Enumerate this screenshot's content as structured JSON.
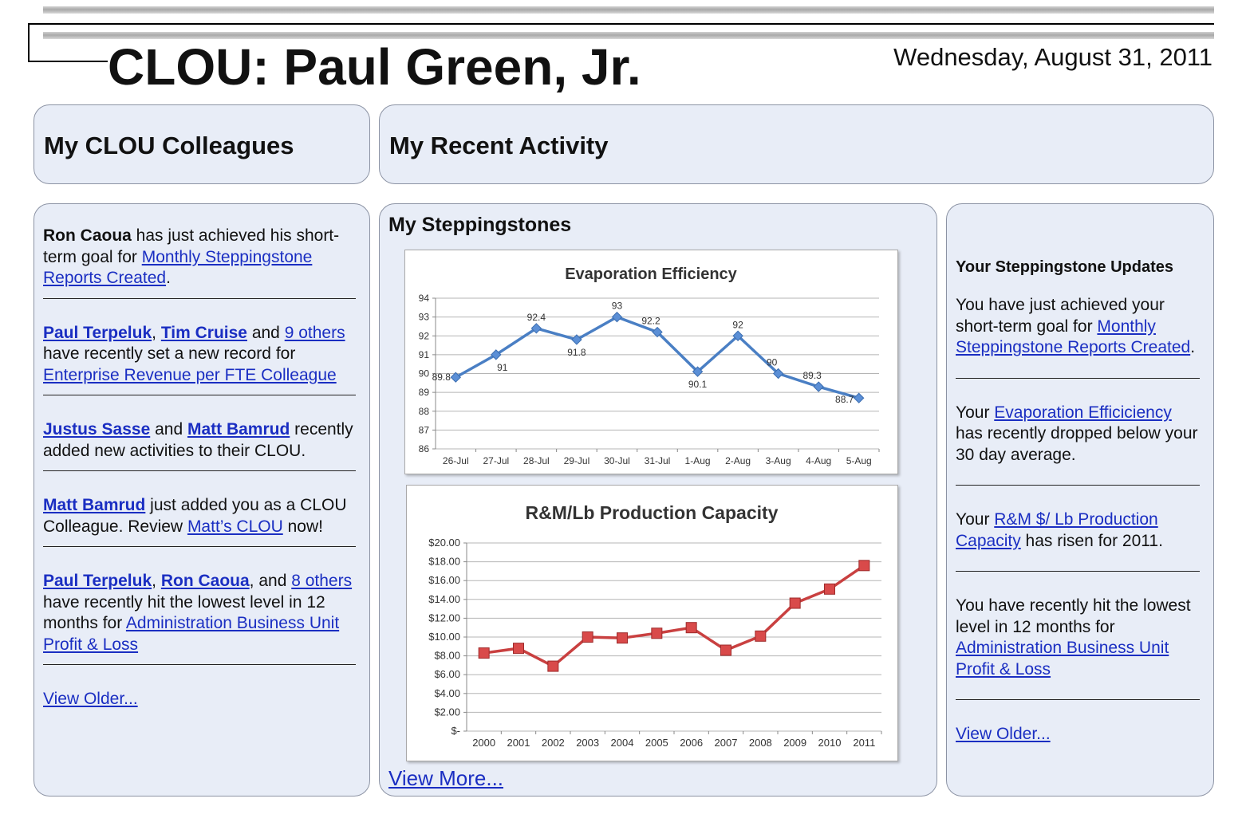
{
  "header": {
    "title": "CLOU: Paul Green, Jr.",
    "date": "Wednesday, August 31, 2011"
  },
  "colleagues_header": "My CLOU Colleagues",
  "activity_header": "My Recent Activity",
  "colleagues": {
    "item1": {
      "name": "Ron Caoua",
      "text1": " has just achieved his short-term goal for ",
      "link": "Monthly Steppingstone Reports Created",
      "text2": "."
    },
    "item2": {
      "name1": "Paul Terpeluk",
      "sep1": ", ",
      "name2": "Tim Cruise",
      "sep2": " and ",
      "others": "9 others",
      "text1": " have recently set a new record for ",
      "link": "Enterprise Revenue per FTE Colleague"
    },
    "item3": {
      "name1": "Justus Sasse",
      "sep1": " and ",
      "name2": "Matt Bamrud",
      "text1": " recently added new activities to their CLOU."
    },
    "item4": {
      "name": "Matt Bamrud",
      "text1": " just added you as a CLOU Colleague.  Review ",
      "link": "Matt’s CLOU",
      "text2": " now!"
    },
    "item5": {
      "name1": "Paul Terpeluk",
      "sep1": ", ",
      "name2": "Ron Caoua",
      "sep2": ", and ",
      "others": "8 others ",
      "text1": "have recently hit the lowest level in 12 months for ",
      "link": "Administration Business Unit Profit & Loss"
    },
    "view_older": "View Older..."
  },
  "steppingstones": {
    "title": "My Steppingstones",
    "view_more": "View More..."
  },
  "updates": {
    "title": "Your Steppingstone Updates",
    "u1": {
      "text1": "You have  just achieved your short-term goal for ",
      "link": "Monthly Steppingstone Reports Created",
      "text2": "."
    },
    "u2": {
      "text1": "Your ",
      "link": "Evaporation Efficiciency",
      "text2": " has recently dropped below your 30 day average."
    },
    "u3": {
      "text1": "Your ",
      "link": "R&M $/ Lb Production Capacity",
      "text2": " has risen for 2011."
    },
    "u4": {
      "text1": "You have recently hit the lowest level in 12 months for ",
      "link": "Administration Business Unit Profit & Loss"
    },
    "view_older": "View Older..."
  },
  "chart_data": [
    {
      "type": "line",
      "title": "Evaporation Efficiency",
      "categories": [
        "26-Jul",
        "27-Jul",
        "28-Jul",
        "29-Jul",
        "30-Jul",
        "31-Jul",
        "1-Aug",
        "2-Aug",
        "3-Aug",
        "4-Aug",
        "5-Aug"
      ],
      "values": [
        89.8,
        91,
        92.4,
        91.8,
        93,
        92.2,
        90.1,
        92,
        90,
        89.3,
        88.7
      ],
      "data_labels": [
        "89.8",
        "91",
        "92.4",
        "91.8",
        "93",
        "92.2",
        "90.1",
        "92",
        "90",
        "89.3",
        "88.7"
      ],
      "ylim": [
        86,
        94
      ],
      "yticks": [
        86,
        87,
        88,
        89,
        90,
        91,
        92,
        93,
        94
      ],
      "ytick_labels": [
        "86",
        "87",
        "88",
        "89",
        "90",
        "91",
        "92",
        "93",
        "94"
      ],
      "grid": true,
      "color": "#4a7fc4",
      "marker": "diamond"
    },
    {
      "type": "line",
      "title": "R&M/Lb Production Capacity",
      "categories": [
        "2000",
        "2001",
        "2002",
        "2003",
        "2004",
        "2005",
        "2006",
        "2007",
        "2008",
        "2009",
        "2010",
        "2011"
      ],
      "values": [
        8.3,
        8.8,
        6.9,
        10.0,
        9.9,
        10.4,
        11.0,
        8.6,
        10.1,
        13.6,
        15.1,
        17.6
      ],
      "ylim": [
        0,
        20
      ],
      "yticks": [
        0,
        2,
        4,
        6,
        8,
        10,
        12,
        14,
        16,
        18,
        20
      ],
      "ytick_labels": [
        "$-",
        "$2.00",
        "$4.00",
        "$6.00",
        "$8.00",
        "$10.00",
        "$12.00",
        "$14.00",
        "$16.00",
        "$18.00",
        "$20.00"
      ],
      "grid": true,
      "color": "#c94040",
      "marker": "square"
    }
  ]
}
